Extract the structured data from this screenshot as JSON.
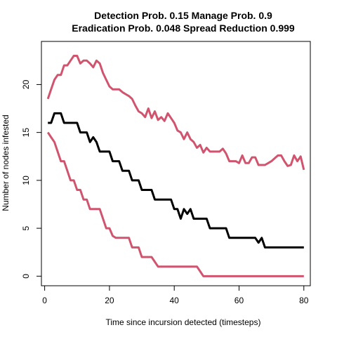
{
  "chart_data": {
    "type": "line",
    "title_line1": "Detection Prob. 0.15 Manage Prob. 0.9",
    "title_line2": "Eradication Prob. 0.048 Spread Reduction 0.999",
    "xlabel": "Time since incursion detected (timesteps)",
    "ylabel": "Number of nodes infested",
    "xlim": [
      -1,
      82
    ],
    "ylim": [
      -1,
      24.5
    ],
    "x_ticks": [
      0,
      20,
      40,
      60,
      80
    ],
    "y_ticks": [
      0,
      5,
      10,
      15,
      20
    ],
    "grid": false,
    "legend": "none",
    "series": [
      {
        "color": "#d1546f",
        "line_width": 3,
        "points": [
          [
            1,
            18.5
          ],
          [
            2,
            19.5
          ],
          [
            3,
            20.5
          ],
          [
            4,
            21
          ],
          [
            5,
            21
          ],
          [
            6,
            22
          ],
          [
            7,
            22
          ],
          [
            8,
            22.5
          ],
          [
            9,
            23
          ],
          [
            10,
            23
          ],
          [
            11,
            22.2
          ],
          [
            12,
            22.5
          ],
          [
            13,
            22.5
          ],
          [
            14,
            22.2
          ],
          [
            15,
            21.8
          ],
          [
            16,
            22.5
          ],
          [
            17,
            22.2
          ],
          [
            18,
            21.2
          ],
          [
            19,
            20.5
          ],
          [
            20,
            19.8
          ],
          [
            21,
            19.5
          ],
          [
            22,
            19.5
          ],
          [
            23,
            19.5
          ],
          [
            24,
            19.2
          ],
          [
            25,
            19
          ],
          [
            26,
            18.8
          ],
          [
            27,
            18.5
          ],
          [
            28,
            17.8
          ],
          [
            29,
            17.2
          ],
          [
            30,
            17
          ],
          [
            31,
            16.6
          ],
          [
            32,
            17.5
          ],
          [
            33,
            16.5
          ],
          [
            34,
            17.2
          ],
          [
            35,
            16.3
          ],
          [
            36,
            16.6
          ],
          [
            37,
            16.2
          ],
          [
            38,
            17
          ],
          [
            39,
            16.5
          ],
          [
            40,
            16
          ],
          [
            41,
            15.2
          ],
          [
            42,
            15
          ],
          [
            43,
            14.3
          ],
          [
            44,
            15
          ],
          [
            45,
            14.3
          ],
          [
            46,
            14
          ],
          [
            47,
            13.4
          ],
          [
            48,
            13.7
          ],
          [
            49,
            12.9
          ],
          [
            50,
            13.4
          ],
          [
            51,
            13
          ],
          [
            52,
            13
          ],
          [
            53,
            13
          ],
          [
            54,
            13
          ],
          [
            55,
            13.3
          ],
          [
            56,
            12.8
          ],
          [
            57,
            12
          ],
          [
            58,
            12
          ],
          [
            59,
            12
          ],
          [
            60,
            11.8
          ],
          [
            61,
            12.6
          ],
          [
            62,
            11.8
          ],
          [
            63,
            11.8
          ],
          [
            64,
            12.4
          ],
          [
            65,
            12.4
          ],
          [
            66,
            11.6
          ],
          [
            67,
            11.6
          ],
          [
            68,
            11.6
          ],
          [
            69,
            11.8
          ],
          [
            70,
            12
          ],
          [
            71,
            12.3
          ],
          [
            72,
            12.6
          ],
          [
            73,
            12.6
          ],
          [
            74,
            12
          ],
          [
            75,
            11.5
          ],
          [
            76,
            11.6
          ],
          [
            77,
            12.6
          ],
          [
            78,
            12
          ],
          [
            79,
            12.5
          ],
          [
            80,
            11.1
          ]
        ]
      },
      {
        "color": "#000000",
        "line_width": 3,
        "points": [
          [
            1,
            16
          ],
          [
            2,
            16
          ],
          [
            3,
            17
          ],
          [
            4,
            17
          ],
          [
            5,
            17
          ],
          [
            6,
            16
          ],
          [
            7,
            16
          ],
          [
            8,
            16
          ],
          [
            9,
            16
          ],
          [
            10,
            16
          ],
          [
            11,
            15
          ],
          [
            12,
            15
          ],
          [
            13,
            15
          ],
          [
            14,
            14
          ],
          [
            15,
            14.5
          ],
          [
            16,
            14
          ],
          [
            17,
            13
          ],
          [
            18,
            13
          ],
          [
            19,
            13
          ],
          [
            20,
            13
          ],
          [
            21,
            12
          ],
          [
            22,
            12
          ],
          [
            23,
            12
          ],
          [
            24,
            11
          ],
          [
            25,
            11
          ],
          [
            26,
            11
          ],
          [
            27,
            10
          ],
          [
            28,
            10
          ],
          [
            29,
            10
          ],
          [
            30,
            9
          ],
          [
            31,
            9
          ],
          [
            32,
            9
          ],
          [
            33,
            9
          ],
          [
            34,
            8
          ],
          [
            35,
            8
          ],
          [
            36,
            8
          ],
          [
            37,
            8
          ],
          [
            38,
            8
          ],
          [
            39,
            8
          ],
          [
            40,
            7
          ],
          [
            41,
            7
          ],
          [
            42,
            6
          ],
          [
            43,
            7
          ],
          [
            44,
            6.5
          ],
          [
            45,
            7
          ],
          [
            46,
            6
          ],
          [
            47,
            6
          ],
          [
            48,
            6
          ],
          [
            49,
            6
          ],
          [
            50,
            6
          ],
          [
            51,
            5
          ],
          [
            52,
            5
          ],
          [
            53,
            5
          ],
          [
            54,
            5
          ],
          [
            55,
            5
          ],
          [
            56,
            5
          ],
          [
            57,
            4
          ],
          [
            58,
            4
          ],
          [
            59,
            4
          ],
          [
            60,
            4
          ],
          [
            61,
            4
          ],
          [
            62,
            4
          ],
          [
            63,
            4
          ],
          [
            64,
            4
          ],
          [
            65,
            4
          ],
          [
            66,
            3.5
          ],
          [
            67,
            4
          ],
          [
            68,
            3
          ],
          [
            69,
            3
          ],
          [
            70,
            3
          ],
          [
            71,
            3
          ],
          [
            72,
            3
          ],
          [
            73,
            3
          ],
          [
            74,
            3
          ],
          [
            75,
            3
          ],
          [
            76,
            3
          ],
          [
            77,
            3
          ],
          [
            78,
            3
          ],
          [
            79,
            3
          ],
          [
            80,
            3
          ]
        ]
      },
      {
        "color": "#d1546f",
        "line_width": 3,
        "points": [
          [
            1,
            15
          ],
          [
            2,
            14.5
          ],
          [
            3,
            14
          ],
          [
            4,
            13
          ],
          [
            5,
            12
          ],
          [
            6,
            12
          ],
          [
            7,
            11
          ],
          [
            8,
            10
          ],
          [
            9,
            10
          ],
          [
            10,
            9
          ],
          [
            11,
            9
          ],
          [
            12,
            8
          ],
          [
            13,
            8
          ],
          [
            14,
            7
          ],
          [
            15,
            7
          ],
          [
            16,
            7
          ],
          [
            17,
            7
          ],
          [
            18,
            6
          ],
          [
            19,
            5
          ],
          [
            20,
            5
          ],
          [
            21,
            4.2
          ],
          [
            22,
            4
          ],
          [
            23,
            4
          ],
          [
            24,
            4
          ],
          [
            25,
            4
          ],
          [
            26,
            4
          ],
          [
            27,
            3
          ],
          [
            28,
            3
          ],
          [
            29,
            3
          ],
          [
            30,
            2
          ],
          [
            31,
            2
          ],
          [
            32,
            2
          ],
          [
            33,
            2
          ],
          [
            34,
            1.5
          ],
          [
            35,
            1
          ],
          [
            36,
            1
          ],
          [
            37,
            1
          ],
          [
            38,
            1
          ],
          [
            39,
            1
          ],
          [
            40,
            1
          ],
          [
            41,
            1
          ],
          [
            42,
            1
          ],
          [
            43,
            1
          ],
          [
            44,
            1
          ],
          [
            45,
            1
          ],
          [
            46,
            1
          ],
          [
            47,
            1
          ],
          [
            48,
            0.5
          ],
          [
            49,
            0
          ],
          [
            50,
            0
          ],
          [
            51,
            0
          ],
          [
            52,
            0
          ],
          [
            53,
            0
          ],
          [
            54,
            0
          ],
          [
            55,
            0
          ],
          [
            56,
            0
          ],
          [
            57,
            0
          ],
          [
            58,
            0
          ],
          [
            59,
            0
          ],
          [
            60,
            0
          ],
          [
            61,
            0
          ],
          [
            62,
            0
          ],
          [
            63,
            0
          ],
          [
            64,
            0
          ],
          [
            65,
            0
          ],
          [
            66,
            0
          ],
          [
            67,
            0
          ],
          [
            68,
            0
          ],
          [
            69,
            0
          ],
          [
            70,
            0
          ],
          [
            71,
            0
          ],
          [
            72,
            0
          ],
          [
            73,
            0
          ],
          [
            74,
            0
          ],
          [
            75,
            0
          ],
          [
            76,
            0
          ],
          [
            77,
            0
          ],
          [
            78,
            0
          ],
          [
            79,
            0
          ],
          [
            80,
            0
          ]
        ]
      }
    ]
  }
}
